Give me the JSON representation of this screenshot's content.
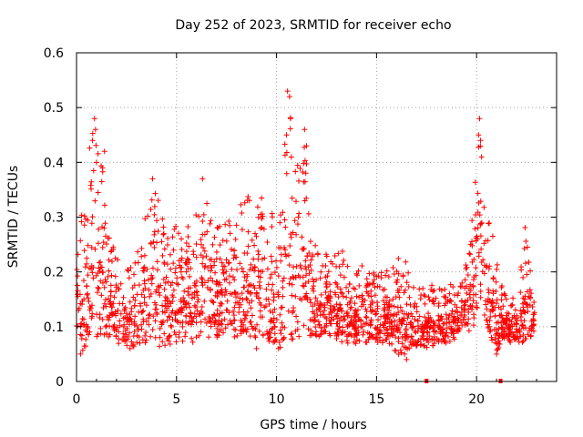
{
  "chart_data": {
    "type": "scatter",
    "title": "Day 252 of 2023, SRMTID for receiver echo",
    "xlabel": "GPS time / hours",
    "ylabel": "SRMTID / TECUs",
    "xlim": [
      0,
      24
    ],
    "ylim": [
      0,
      0.6
    ],
    "xticks": [
      0,
      5,
      10,
      15,
      20
    ],
    "xtick_labels": [
      "0",
      "5",
      "10",
      "15",
      "20"
    ],
    "yticks": [
      0,
      0.1,
      0.2,
      0.3,
      0.4,
      0.5,
      0.6
    ],
    "ytick_labels": [
      "0",
      "0.1",
      "0.2",
      "0.3",
      "0.4",
      "0.5",
      "0.6"
    ],
    "grid": true,
    "marker": "plus",
    "series": [
      {
        "name": "SRMTID",
        "color": "#ff0000",
        "envelope": [
          [
            0.0,
            0.06,
            0.35
          ],
          [
            0.4,
            0.05,
            0.32
          ],
          [
            0.8,
            0.07,
            0.49
          ],
          [
            1.2,
            0.08,
            0.43
          ],
          [
            1.7,
            0.07,
            0.26
          ],
          [
            2.2,
            0.06,
            0.22
          ],
          [
            2.7,
            0.06,
            0.21
          ],
          [
            3.2,
            0.07,
            0.27
          ],
          [
            3.8,
            0.07,
            0.37
          ],
          [
            4.3,
            0.06,
            0.33
          ],
          [
            4.8,
            0.07,
            0.3
          ],
          [
            5.3,
            0.07,
            0.28
          ],
          [
            6.0,
            0.07,
            0.31
          ],
          [
            6.4,
            0.08,
            0.37
          ],
          [
            7.0,
            0.08,
            0.28
          ],
          [
            7.5,
            0.08,
            0.32
          ],
          [
            8.0,
            0.08,
            0.31
          ],
          [
            8.5,
            0.08,
            0.35
          ],
          [
            9.0,
            0.08,
            0.34
          ],
          [
            9.5,
            0.08,
            0.33
          ],
          [
            10.0,
            0.05,
            0.3
          ],
          [
            10.4,
            0.07,
            0.43
          ],
          [
            10.6,
            0.07,
            0.53
          ],
          [
            10.9,
            0.07,
            0.4
          ],
          [
            11.4,
            0.08,
            0.47
          ],
          [
            11.8,
            0.08,
            0.26
          ],
          [
            12.3,
            0.08,
            0.24
          ],
          [
            12.8,
            0.08,
            0.23
          ],
          [
            13.3,
            0.07,
            0.24
          ],
          [
            13.8,
            0.07,
            0.19
          ],
          [
            14.3,
            0.06,
            0.22
          ],
          [
            14.8,
            0.07,
            0.2
          ],
          [
            15.3,
            0.07,
            0.2
          ],
          [
            15.8,
            0.06,
            0.21
          ],
          [
            16.3,
            0.04,
            0.24
          ],
          [
            16.8,
            0.06,
            0.18
          ],
          [
            17.3,
            0.06,
            0.17
          ],
          [
            17.8,
            0.06,
            0.18
          ],
          [
            18.3,
            0.07,
            0.17
          ],
          [
            18.8,
            0.07,
            0.18
          ],
          [
            19.2,
            0.09,
            0.19
          ],
          [
            19.6,
            0.09,
            0.26
          ],
          [
            19.9,
            0.1,
            0.35
          ],
          [
            20.1,
            0.14,
            0.49
          ],
          [
            20.4,
            0.12,
            0.34
          ],
          [
            20.7,
            0.06,
            0.31
          ],
          [
            21.0,
            0.05,
            0.22
          ],
          [
            21.3,
            0.08,
            0.17
          ],
          [
            21.7,
            0.07,
            0.15
          ],
          [
            22.1,
            0.06,
            0.16
          ],
          [
            22.4,
            0.07,
            0.29
          ],
          [
            22.9,
            0.09,
            0.14
          ]
        ],
        "spikes": [
          [
            0.9,
            0.48
          ],
          [
            0.95,
            0.46
          ],
          [
            0.8,
            0.44
          ],
          [
            1.4,
            0.42
          ],
          [
            1.3,
            0.39
          ],
          [
            1.0,
            0.4
          ],
          [
            10.55,
            0.53
          ],
          [
            10.65,
            0.52
          ],
          [
            10.7,
            0.48
          ],
          [
            10.5,
            0.45
          ],
          [
            11.4,
            0.46
          ],
          [
            11.5,
            0.43
          ],
          [
            20.15,
            0.48
          ],
          [
            20.1,
            0.45
          ],
          [
            20.2,
            0.44
          ],
          [
            20.25,
            0.41
          ],
          [
            6.3,
            0.37
          ],
          [
            3.8,
            0.37
          ],
          [
            16.4,
            0.05
          ],
          [
            16.5,
            0.04
          ],
          [
            21.0,
            0.05
          ],
          [
            9.0,
            0.06
          ],
          [
            10.1,
            0.06
          ],
          [
            0.2,
            0.05
          ]
        ],
        "zero_points": [
          [
            17.5,
            0.0
          ],
          [
            21.2,
            0.0
          ]
        ],
        "samples_per_hour": 90
      }
    ]
  }
}
